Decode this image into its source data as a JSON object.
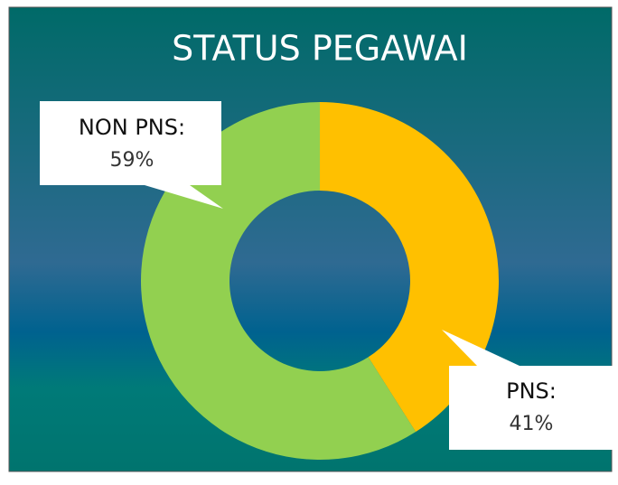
{
  "chart_data": {
    "type": "donut",
    "title": "STATUS PEGAWAI",
    "categories": [
      "PNS:",
      "NON PNS:"
    ],
    "values": [
      41,
      59
    ],
    "value_labels": [
      "41%",
      "59%"
    ],
    "colors": [
      "#ffc000",
      "#92d050"
    ]
  }
}
